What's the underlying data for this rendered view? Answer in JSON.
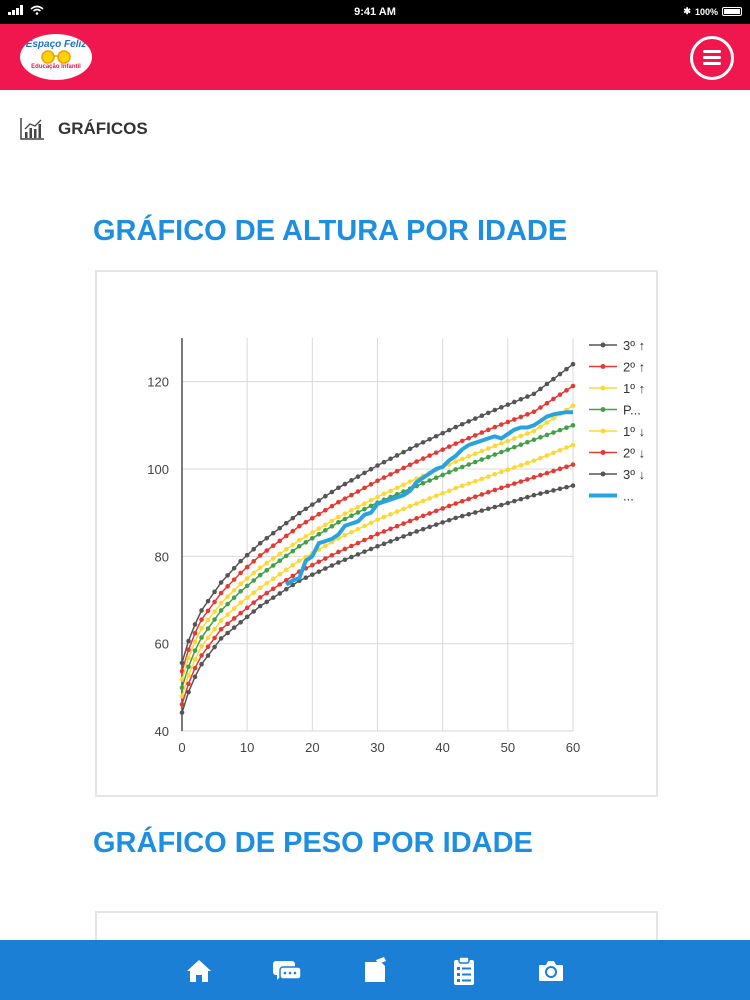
{
  "status_bar": {
    "time": "9:41 AM",
    "battery": "100%"
  },
  "header": {
    "logo": {
      "title": "Espaço Feliz",
      "subtitle": "Educação Infantil"
    },
    "menu_icon": "hamburger-menu-icon"
  },
  "page": {
    "section_icon": "bar-chart-icon",
    "section_title": "GRÁFICOS"
  },
  "charts": [
    {
      "title": "GRÁFICO DE ALTURA POR IDADE"
    },
    {
      "title": "GRÁFICO DE PESO POR IDADE"
    }
  ],
  "tab_bar": {
    "items": [
      {
        "icon": "home-icon"
      },
      {
        "icon": "chat-bubbles-icon"
      },
      {
        "icon": "notes-icon"
      },
      {
        "icon": "clipboard-checklist-icon"
      },
      {
        "icon": "camera-icon"
      }
    ]
  },
  "colors": {
    "header": "#f0174f",
    "title": "#1e8fe0",
    "tabbar": "#1b7fd6"
  },
  "chart_data": {
    "type": "line",
    "title": "GRÁFICO DE ALTURA POR IDADE",
    "xlim": [
      0,
      60
    ],
    "ylim": [
      40,
      130
    ],
    "x_ticks": [
      0,
      10,
      20,
      30,
      40,
      50,
      60
    ],
    "y_ticks": [
      40,
      60,
      80,
      100,
      120
    ],
    "grid": true,
    "legend_position": "right",
    "series": [
      {
        "name": "3º ↑",
        "color": "#555555",
        "x": [
          0,
          1,
          2,
          3,
          6,
          9,
          12,
          18,
          24,
          30,
          36,
          42,
          48,
          54,
          60
        ],
        "values": [
          55.6,
          60.6,
          64.4,
          67.6,
          74.0,
          78.9,
          83.0,
          89.9,
          95.7,
          100.8,
          105.4,
          109.6,
          113.5,
          117.2,
          124.0
        ]
      },
      {
        "name": "2º ↑",
        "color": "#e53935",
        "x": [
          0,
          1,
          2,
          3,
          6,
          9,
          12,
          18,
          24,
          30,
          36,
          42,
          48,
          54,
          60
        ],
        "values": [
          53.7,
          58.6,
          62.4,
          65.5,
          71.6,
          76.2,
          80.2,
          86.9,
          92.4,
          97.3,
          101.7,
          105.8,
          109.6,
          113.1,
          119.0
        ]
      },
      {
        "name": "1º ↑",
        "color": "#fdd835",
        "x": [
          0,
          1,
          2,
          3,
          6,
          9,
          12,
          18,
          24,
          30,
          36,
          42,
          48,
          54,
          60
        ],
        "values": [
          51.8,
          56.7,
          60.4,
          63.5,
          69.3,
          73.7,
          77.4,
          83.7,
          89.0,
          93.6,
          97.8,
          101.7,
          105.3,
          108.7,
          114.5
        ]
      },
      {
        "name": "P...",
        "color": "#43a047",
        "x": [
          0,
          1,
          2,
          3,
          6,
          9,
          12,
          18,
          24,
          30,
          36,
          42,
          48,
          54,
          60
        ],
        "values": [
          49.9,
          54.7,
          58.4,
          61.4,
          67.6,
          72.0,
          75.7,
          82.3,
          87.8,
          92.3,
          96.1,
          99.9,
          103.3,
          106.7,
          110.0
        ]
      },
      {
        "name": "1º ↓",
        "color": "#fdd835",
        "x": [
          0,
          1,
          2,
          3,
          6,
          9,
          12,
          18,
          24,
          30,
          36,
          42,
          48,
          54,
          60
        ],
        "values": [
          48.0,
          52.8,
          56.4,
          59.4,
          65.3,
          69.4,
          72.8,
          79.0,
          84.1,
          88.4,
          92.1,
          95.6,
          98.8,
          101.9,
          105.5
        ]
      },
      {
        "name": "2º ↓",
        "color": "#e53935",
        "x": [
          0,
          1,
          2,
          3,
          6,
          9,
          12,
          18,
          24,
          30,
          36,
          42,
          48,
          54,
          60
        ],
        "values": [
          46.1,
          50.8,
          54.4,
          57.3,
          63.3,
          67.0,
          70.6,
          76.5,
          81.0,
          85.1,
          88.7,
          92.1,
          95.2,
          98.1,
          101.0
        ]
      },
      {
        "name": "3º ↓",
        "color": "#555555",
        "x": [
          0,
          1,
          2,
          3,
          6,
          9,
          12,
          18,
          24,
          30,
          36,
          42,
          48,
          54,
          60
        ],
        "values": [
          44.2,
          48.9,
          52.4,
          55.3,
          61.2,
          64.9,
          68.6,
          74.4,
          78.6,
          82.3,
          85.7,
          88.8,
          91.3,
          94.0,
          96.2
        ]
      },
      {
        "name": "...",
        "color": "#29a3e0",
        "x": [
          16,
          17,
          18,
          19,
          20,
          21,
          22,
          23,
          24,
          25,
          26,
          27,
          28,
          29,
          30,
          31,
          32,
          33,
          34,
          35,
          36,
          37,
          38,
          39,
          40,
          41,
          42,
          43,
          44,
          45,
          46,
          47,
          48,
          49,
          50,
          51,
          52,
          53,
          54,
          55,
          56,
          57,
          58,
          59,
          60
        ],
        "values": [
          73.5,
          74.5,
          75.0,
          79.0,
          80.0,
          83.0,
          83.5,
          84.0,
          85.0,
          87.0,
          87.5,
          88.0,
          89.5,
          90.0,
          92.0,
          92.5,
          93.0,
          93.5,
          94.0,
          95.0,
          97.0,
          98.0,
          99.0,
          100.0,
          100.5,
          102.0,
          103.0,
          104.5,
          105.5,
          106.0,
          106.5,
          107.0,
          107.5,
          107.0,
          108.0,
          109.0,
          109.5,
          109.5,
          110.0,
          111.0,
          112.0,
          112.5,
          112.8,
          113.0,
          113.0
        ]
      }
    ]
  }
}
